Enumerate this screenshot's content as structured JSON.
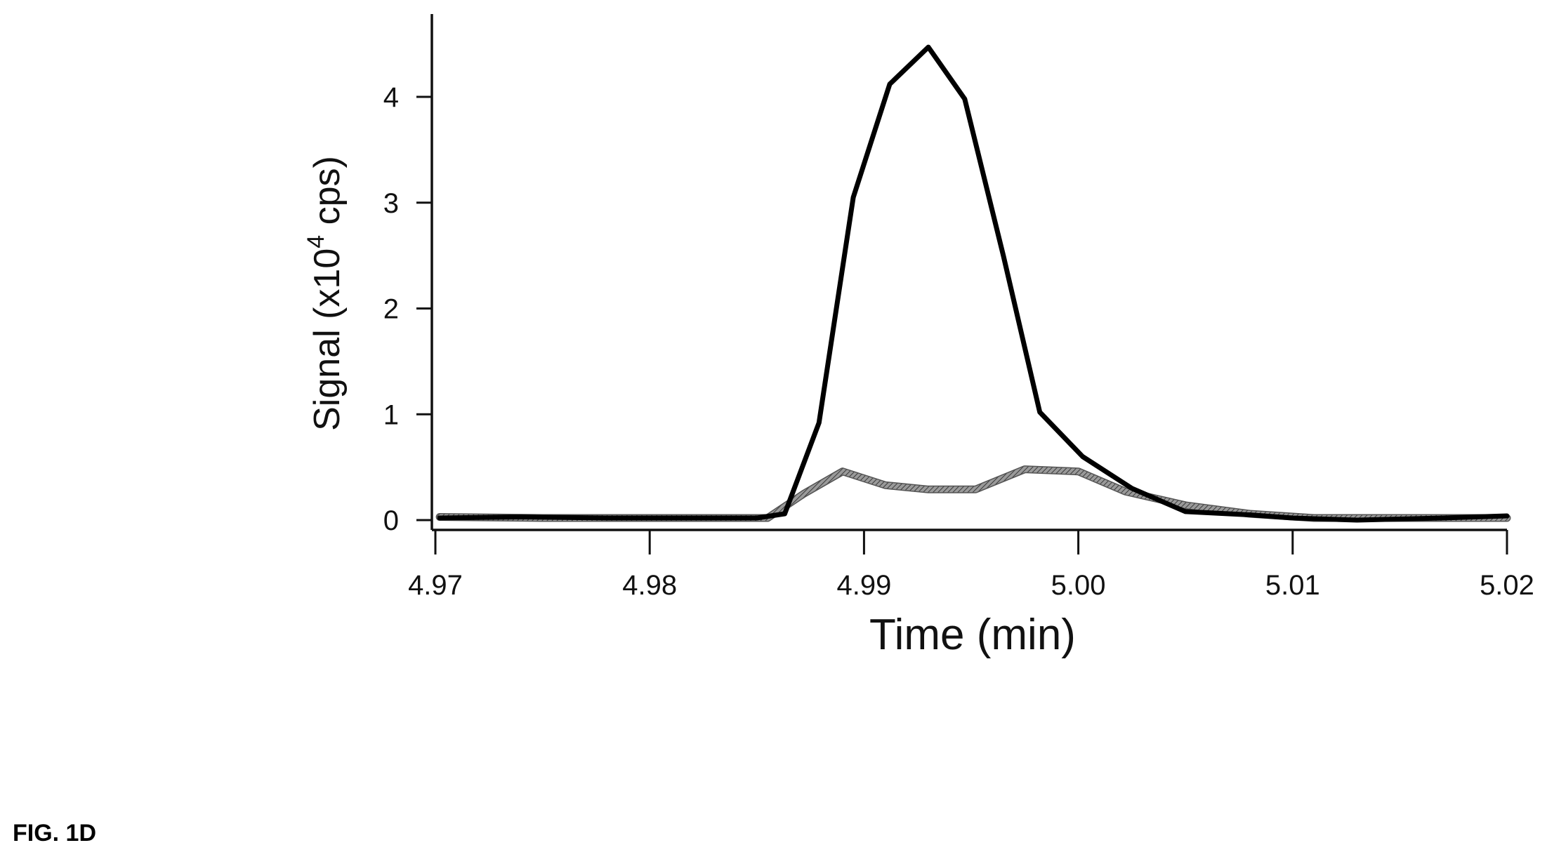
{
  "figure_label": "FIG. 1D",
  "chart_data": {
    "type": "line",
    "xlabel": "Time (min)",
    "ylabel": {
      "prefix": "Signal (x10",
      "superscript": "4",
      "suffix": " cps)"
    },
    "xlim": [
      4.97,
      5.02
    ],
    "ylim": [
      0,
      4.8
    ],
    "xticks": [
      "4.97",
      "4.98",
      "4.99",
      "5.00",
      "5.01",
      "5.02"
    ],
    "yticks": [
      "0",
      "1",
      "2",
      "3",
      "4"
    ],
    "grid": false,
    "series": [
      {
        "color": "#000000",
        "style": "solid-thick",
        "points": [
          [
            4.9702,
            0.02
          ],
          [
            4.974,
            0.03
          ],
          [
            4.978,
            0.02
          ],
          [
            4.982,
            0.02
          ],
          [
            4.985,
            0.02
          ],
          [
            4.9863,
            0.06
          ],
          [
            4.9879,
            0.92
          ],
          [
            4.9895,
            3.05
          ],
          [
            4.9912,
            4.12
          ],
          [
            4.993,
            4.47
          ],
          [
            4.9947,
            3.98
          ],
          [
            4.9965,
            2.5
          ],
          [
            4.9982,
            1.02
          ],
          [
            5.0002,
            0.6
          ],
          [
            5.0025,
            0.3
          ],
          [
            5.005,
            0.08
          ],
          [
            5.008,
            0.05
          ],
          [
            5.01,
            0.02
          ],
          [
            5.013,
            0.0
          ],
          [
            5.017,
            0.02
          ],
          [
            5.02,
            0.04
          ]
        ]
      },
      {
        "color": "#8a8a8a",
        "style": "hatched",
        "points": [
          [
            4.9702,
            0.03
          ],
          [
            4.975,
            0.02
          ],
          [
            4.98,
            0.02
          ],
          [
            4.9855,
            0.02
          ],
          [
            4.9872,
            0.25
          ],
          [
            4.989,
            0.46
          ],
          [
            4.991,
            0.33
          ],
          [
            4.993,
            0.29
          ],
          [
            4.9952,
            0.29
          ],
          [
            4.9975,
            0.48
          ],
          [
            5.0,
            0.46
          ],
          [
            5.0022,
            0.27
          ],
          [
            5.005,
            0.14
          ],
          [
            5.008,
            0.06
          ],
          [
            5.011,
            0.02
          ],
          [
            5.014,
            0.02
          ],
          [
            5.02,
            0.02
          ]
        ]
      }
    ]
  }
}
